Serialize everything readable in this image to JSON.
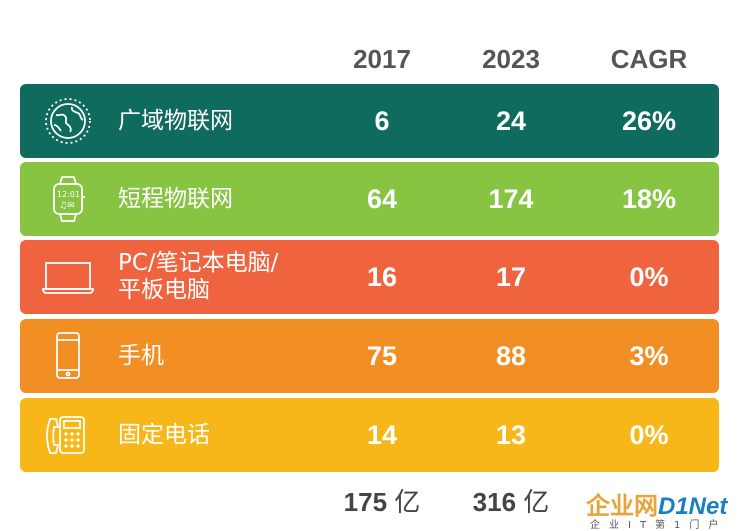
{
  "chart_data": {
    "type": "table",
    "columns": [
      "2017",
      "2023",
      "CAGR"
    ],
    "rows": [
      {
        "label": "广域物联网",
        "icon": "globe-icon",
        "color": "#0f6b5e",
        "v2017": "6",
        "v2023": "24",
        "cagr": "26%"
      },
      {
        "label": "短程物联网",
        "icon": "smartwatch-icon",
        "color": "#86c441",
        "v2017": "64",
        "v2023": "174",
        "cagr": "18%"
      },
      {
        "label": "PC/笔记本电脑/\n平板电脑",
        "icon": "laptop-icon",
        "color": "#f0633f",
        "v2017": "16",
        "v2023": "17",
        "cagr": "0%"
      },
      {
        "label": "手机",
        "icon": "phone-icon",
        "color": "#f18f25",
        "v2017": "75",
        "v2023": "88",
        "cagr": "3%"
      },
      {
        "label": "固定电话",
        "icon": "landline-phone-icon",
        "color": "#f7b719",
        "v2017": "14",
        "v2023": "13",
        "cagr": "0%"
      }
    ],
    "totals": {
      "v2017": "175",
      "v2023": "316",
      "unit": "亿"
    }
  },
  "watermark": {
    "brand_cn": "企业网",
    "brand_en": "D1Net",
    "tagline": "企业IT第1门户"
  }
}
